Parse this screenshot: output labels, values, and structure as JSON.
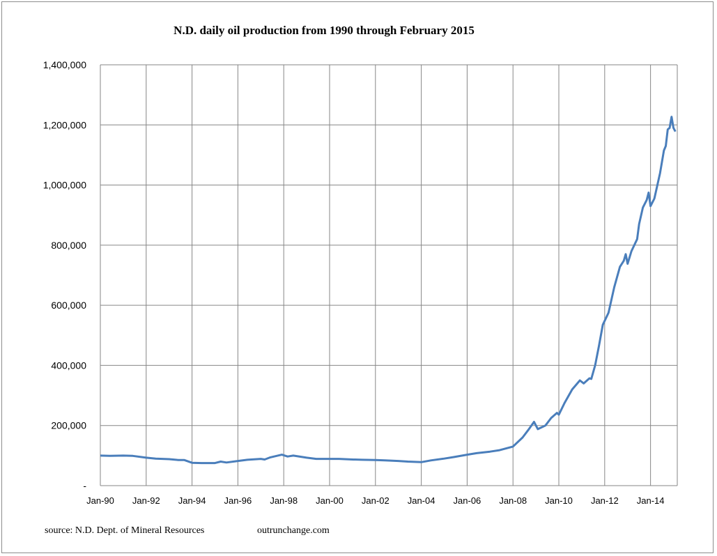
{
  "chart_data": {
    "type": "line",
    "title": "N.D. daily oil production from 1990 through February 2015",
    "xlabel": "",
    "ylabel": "",
    "ylim": [
      0,
      1400000
    ],
    "xlim": [
      "1990-01",
      "2015-03"
    ],
    "grid": true,
    "yticks": [
      0,
      200000,
      400000,
      600000,
      800000,
      1000000,
      1200000,
      1400000
    ],
    "ytick_labels": [
      "-",
      "200,000",
      "400,000",
      "600,000",
      "800,000",
      "1,000,000",
      "1,200,000",
      "1,400,000"
    ],
    "xticks": [
      "1990-01",
      "1992-01",
      "1994-01",
      "1996-01",
      "1998-01",
      "2000-01",
      "2002-01",
      "2004-01",
      "2006-01",
      "2008-01",
      "2010-01",
      "2012-01",
      "2014-01"
    ],
    "xtick_labels": [
      "Jan-90",
      "Jan-92",
      "Jan-94",
      "Jan-96",
      "Jan-98",
      "Jan-00",
      "Jan-02",
      "Jan-04",
      "Jan-06",
      "Jan-08",
      "Jan-10",
      "Jan-12",
      "Jan-14"
    ],
    "line_color": "#4a7ebb",
    "series": [
      {
        "points": [
          [
            "1990-01",
            100000
          ],
          [
            "1990-06",
            99000
          ],
          [
            "1991-01",
            100000
          ],
          [
            "1991-06",
            99000
          ],
          [
            "1992-01",
            93000
          ],
          [
            "1992-06",
            90000
          ],
          [
            "1993-01",
            88000
          ],
          [
            "1993-06",
            85000
          ],
          [
            "1993-09",
            85000
          ],
          [
            "1994-01",
            76000
          ],
          [
            "1994-06",
            75000
          ],
          [
            "1995-01",
            75000
          ],
          [
            "1995-04",
            80000
          ],
          [
            "1995-07",
            77000
          ],
          [
            "1996-01",
            82000
          ],
          [
            "1996-06",
            86000
          ],
          [
            "1997-01",
            89000
          ],
          [
            "1997-03",
            87000
          ],
          [
            "1997-06",
            94000
          ],
          [
            "1997-12",
            103000
          ],
          [
            "1998-03",
            97000
          ],
          [
            "1998-06",
            100000
          ],
          [
            "1999-01",
            93000
          ],
          [
            "1999-06",
            89000
          ],
          [
            "2000-01",
            89000
          ],
          [
            "2000-06",
            89000
          ],
          [
            "2001-01",
            87000
          ],
          [
            "2001-06",
            86000
          ],
          [
            "2002-01",
            85000
          ],
          [
            "2002-06",
            84000
          ],
          [
            "2003-01",
            82000
          ],
          [
            "2003-06",
            80000
          ],
          [
            "2004-01",
            78000
          ],
          [
            "2004-06",
            84000
          ],
          [
            "2005-01",
            90000
          ],
          [
            "2005-06",
            95000
          ],
          [
            "2006-01",
            103000
          ],
          [
            "2006-06",
            108000
          ],
          [
            "2007-01",
            113000
          ],
          [
            "2007-06",
            118000
          ],
          [
            "2008-01",
            130000
          ],
          [
            "2008-06",
            160000
          ],
          [
            "2008-09",
            185000
          ],
          [
            "2008-12",
            212000
          ],
          [
            "2009-02",
            188000
          ],
          [
            "2009-06",
            200000
          ],
          [
            "2009-09",
            225000
          ],
          [
            "2009-12",
            242000
          ],
          [
            "2010-01",
            236000
          ],
          [
            "2010-04",
            275000
          ],
          [
            "2010-08",
            320000
          ],
          [
            "2010-12",
            350000
          ],
          [
            "2011-02",
            340000
          ],
          [
            "2011-05",
            357000
          ],
          [
            "2011-06",
            355000
          ],
          [
            "2011-08",
            400000
          ],
          [
            "2011-10",
            465000
          ],
          [
            "2011-12",
            535000
          ],
          [
            "2012-03",
            575000
          ],
          [
            "2012-06",
            660000
          ],
          [
            "2012-09",
            728000
          ],
          [
            "2012-11",
            748000
          ],
          [
            "2012-12",
            770000
          ],
          [
            "2013-01",
            738000
          ],
          [
            "2013-03",
            780000
          ],
          [
            "2013-06",
            820000
          ],
          [
            "2013-07",
            870000
          ],
          [
            "2013-09",
            925000
          ],
          [
            "2013-11",
            950000
          ],
          [
            "2013-12",
            975000
          ],
          [
            "2014-01",
            930000
          ],
          [
            "2014-03",
            955000
          ],
          [
            "2014-06",
            1040000
          ],
          [
            "2014-08",
            1115000
          ],
          [
            "2014-09",
            1130000
          ],
          [
            "2014-10",
            1185000
          ],
          [
            "2014-11",
            1190000
          ],
          [
            "2014-12",
            1227000
          ],
          [
            "2015-01",
            1190000
          ],
          [
            "2015-02",
            1178000
          ]
        ]
      }
    ]
  },
  "footer": {
    "source": "source: N.D. Dept. of Mineral Resources",
    "site": "outrunchange.com"
  }
}
